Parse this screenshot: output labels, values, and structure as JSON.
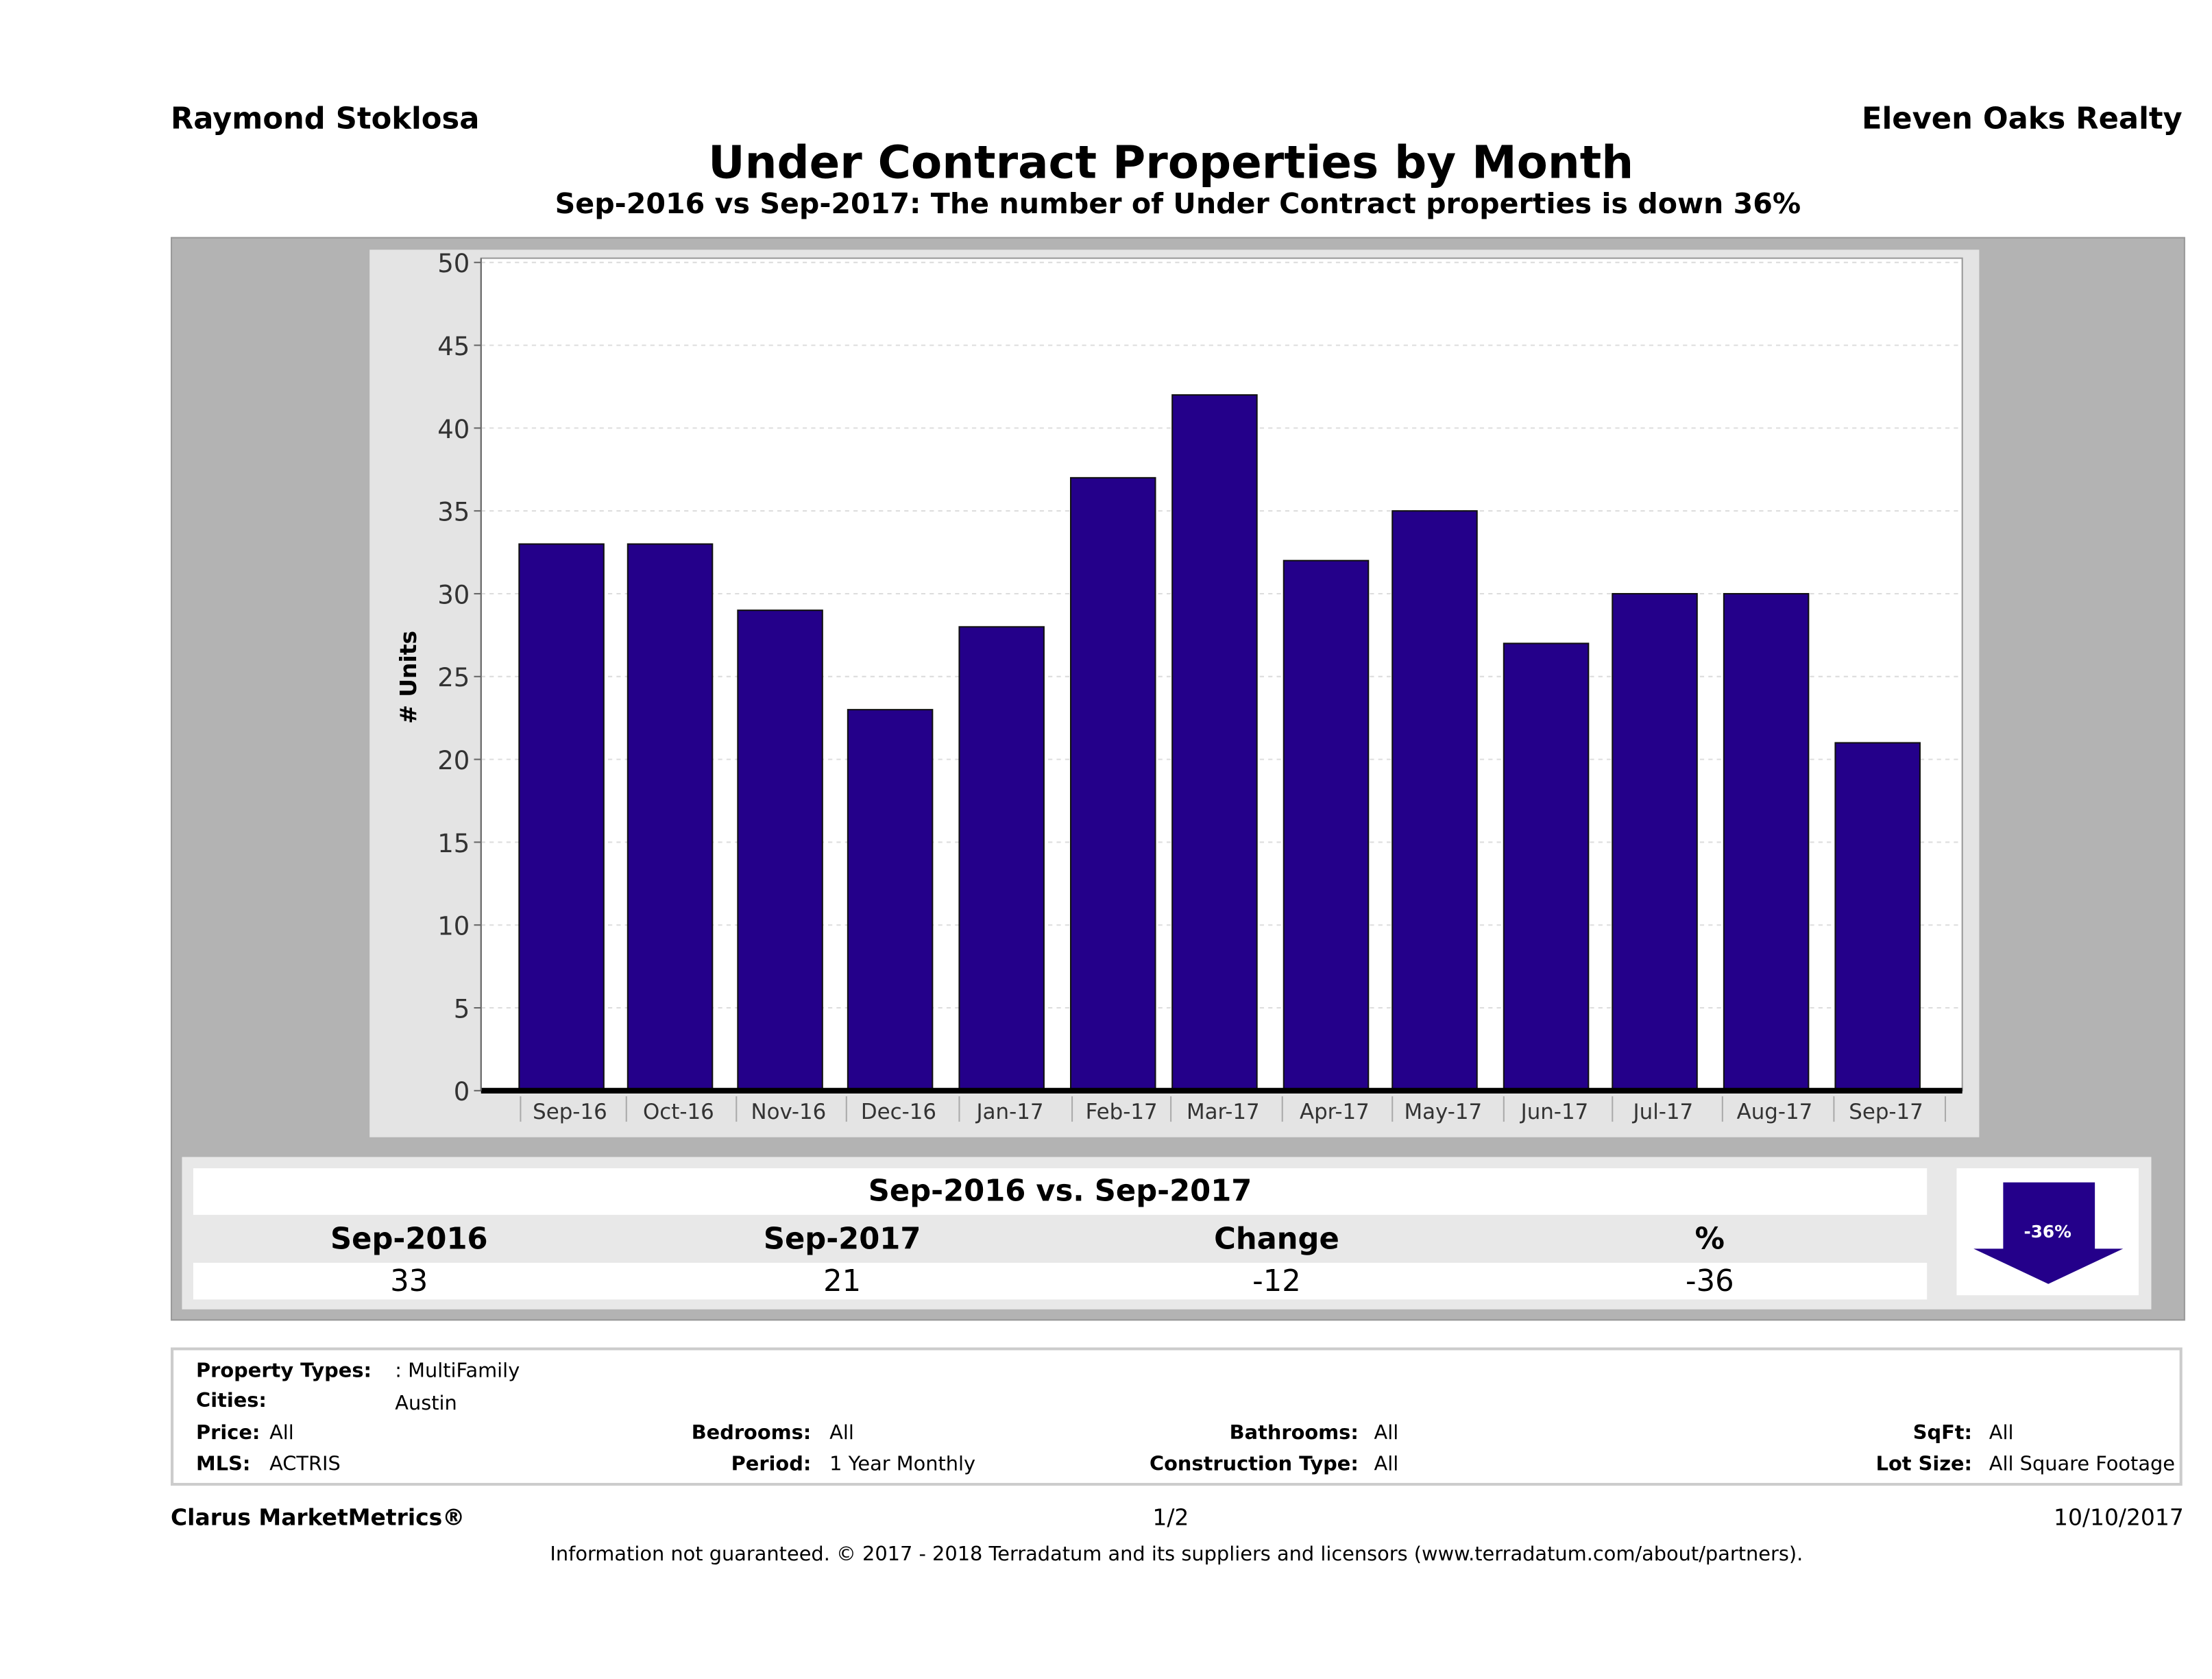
{
  "header": {
    "agent": "Raymond Stoklosa",
    "brokerage": "Eleven Oaks Realty"
  },
  "chart_data": {
    "type": "bar",
    "title": "Under Contract Properties by Month",
    "subtitle": "Sep-2016 vs Sep-2017: The number of Under Contract  properties is down 36%",
    "categories": [
      "Sep-16",
      "Oct-16",
      "Nov-16",
      "Dec-16",
      "Jan-17",
      "Feb-17",
      "Mar-17",
      "Apr-17",
      "May-17",
      "Jun-17",
      "Jul-17",
      "Aug-17",
      "Sep-17"
    ],
    "values": [
      33,
      33,
      29,
      23,
      28,
      37,
      42,
      32,
      35,
      27,
      30,
      30,
      21
    ],
    "xlabel": "",
    "ylabel": "# Units",
    "ylim": [
      0,
      50
    ],
    "yticks": [
      "0",
      "5",
      "10",
      "15",
      "20",
      "25",
      "30",
      "35",
      "40",
      "45",
      "50"
    ],
    "grid": true,
    "bar_color": "#24008a"
  },
  "summary": {
    "title": "Sep-2016 vs. Sep-2017",
    "headers": [
      "Sep-2016",
      "Sep-2017",
      "Change",
      "%"
    ],
    "values": [
      "33",
      "21",
      "-12",
      "-36"
    ],
    "arrow_label": "-36%"
  },
  "filters": {
    "property_types_label": "Property Types:",
    "property_types": ": MultiFamily",
    "cities_label": "Cities:",
    "cities": "Austin",
    "price_label": "Price:",
    "price": "All",
    "bedrooms_label": "Bedrooms:",
    "bedrooms": "All",
    "bathrooms_label": "Bathrooms:",
    "bathrooms": "All",
    "sqft_label": "SqFt:",
    "sqft": "All",
    "mls_label": "MLS:",
    "mls": "ACTRIS",
    "period_label": "Period:",
    "period": "1 Year Monthly",
    "construction_label": "Construction Type:",
    "construction": "All",
    "lot_label": "Lot Size:",
    "lot": "All Square Footage"
  },
  "footer": {
    "brand": "Clarus MarketMetrics®",
    "page": "1/2",
    "date": "10/10/2017",
    "disclaimer": "Information not guaranteed. © 2017 - 2018 Terradatum and its suppliers and licensors (www.terradatum.com/about/partners)."
  }
}
